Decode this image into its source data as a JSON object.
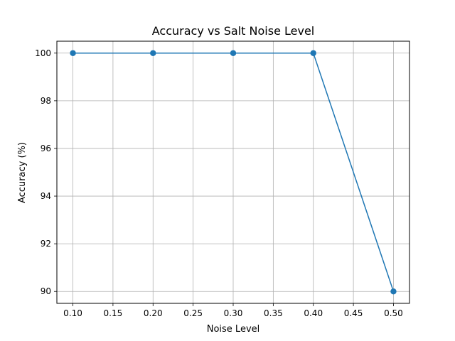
{
  "chart_data": {
    "type": "line",
    "title": "Accuracy vs Salt Noise Level",
    "xlabel": "Noise Level",
    "ylabel": "Accuracy (%)",
    "x": [
      0.1,
      0.2,
      0.3,
      0.4,
      0.5
    ],
    "series": [
      {
        "values": [
          100,
          100,
          100,
          100,
          90
        ],
        "color": "#1f77b4",
        "marker": "circle"
      }
    ],
    "xlim": [
      0.08,
      0.52
    ],
    "ylim": [
      89.5,
      100.5
    ],
    "xticks": [
      0.1,
      0.15,
      0.2,
      0.25,
      0.3,
      0.35,
      0.4,
      0.45,
      0.5
    ],
    "xtick_labels": [
      "0.10",
      "0.15",
      "0.20",
      "0.25",
      "0.30",
      "0.35",
      "0.40",
      "0.45",
      "0.50"
    ],
    "yticks": [
      90,
      92,
      94,
      96,
      98,
      100
    ],
    "ytick_labels": [
      "90",
      "92",
      "94",
      "96",
      "98",
      "100"
    ],
    "grid": true,
    "legend": "none"
  }
}
